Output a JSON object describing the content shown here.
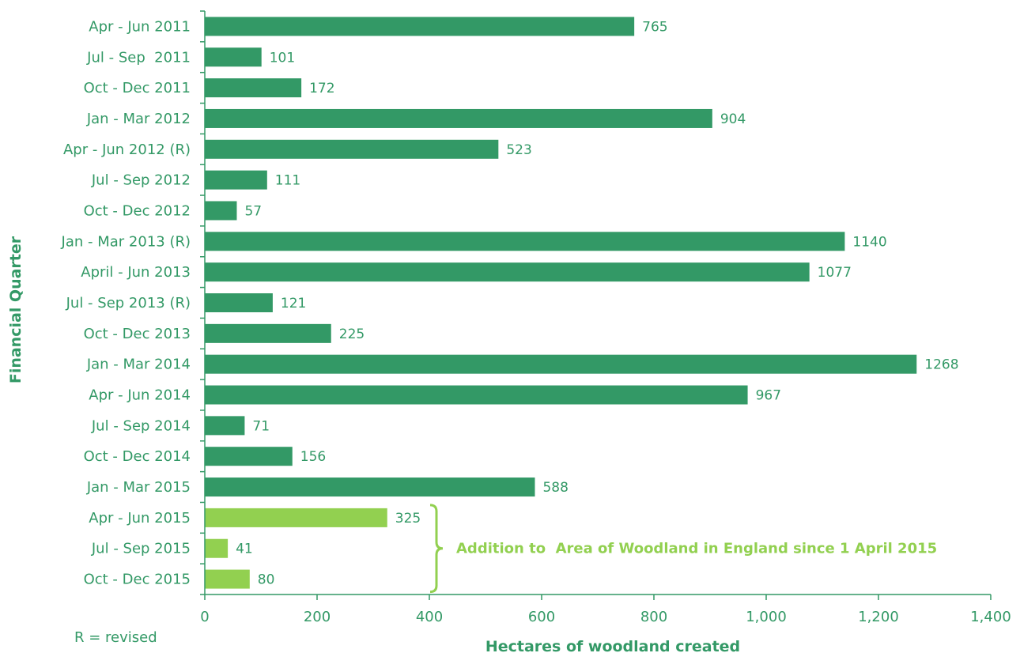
{
  "chart_data": {
    "type": "bar",
    "orientation": "horizontal",
    "categories": [
      "Apr - Jun 2011",
      "Jul - Sep  2011",
      "Oct - Dec 2011",
      "Jan - Mar 2012",
      "Apr - Jun 2012 (R)",
      "Jul - Sep 2012",
      "Oct - Dec 2012",
      "Jan - Mar 2013 (R)",
      "April - Jun 2013",
      "Jul - Sep 2013 (R)",
      "Oct - Dec 2013",
      "Jan - Mar 2014",
      "Apr - Jun 2014",
      "Jul - Sep 2014",
      "Oct - Dec 2014",
      "Jan - Mar 2015",
      "Apr - Jun 2015",
      "Jul - Sep 2015",
      "Oct - Dec 2015"
    ],
    "values": [
      765,
      101,
      172,
      904,
      523,
      111,
      57,
      1140,
      1077,
      121,
      225,
      1268,
      967,
      71,
      156,
      588,
      325,
      41,
      80
    ],
    "highlighted_from_index": 16,
    "xlabel": "Hectares of woodland created",
    "ylabel": "Financial Quarter",
    "xlim": [
      0,
      1400
    ],
    "xticks": [
      0,
      200,
      400,
      600,
      800,
      1000,
      1200,
      1400
    ],
    "xtick_labels": [
      "0",
      "200",
      "400",
      "600",
      "800",
      "1,000",
      "1,200",
      "1,400"
    ],
    "grid": false,
    "annotation": "Addition to  Area of Woodland in England since 1 April 2015",
    "note": "R = revised",
    "colors": {
      "bar": "#339966",
      "highlight": "#92D050",
      "text": "#339966"
    }
  }
}
